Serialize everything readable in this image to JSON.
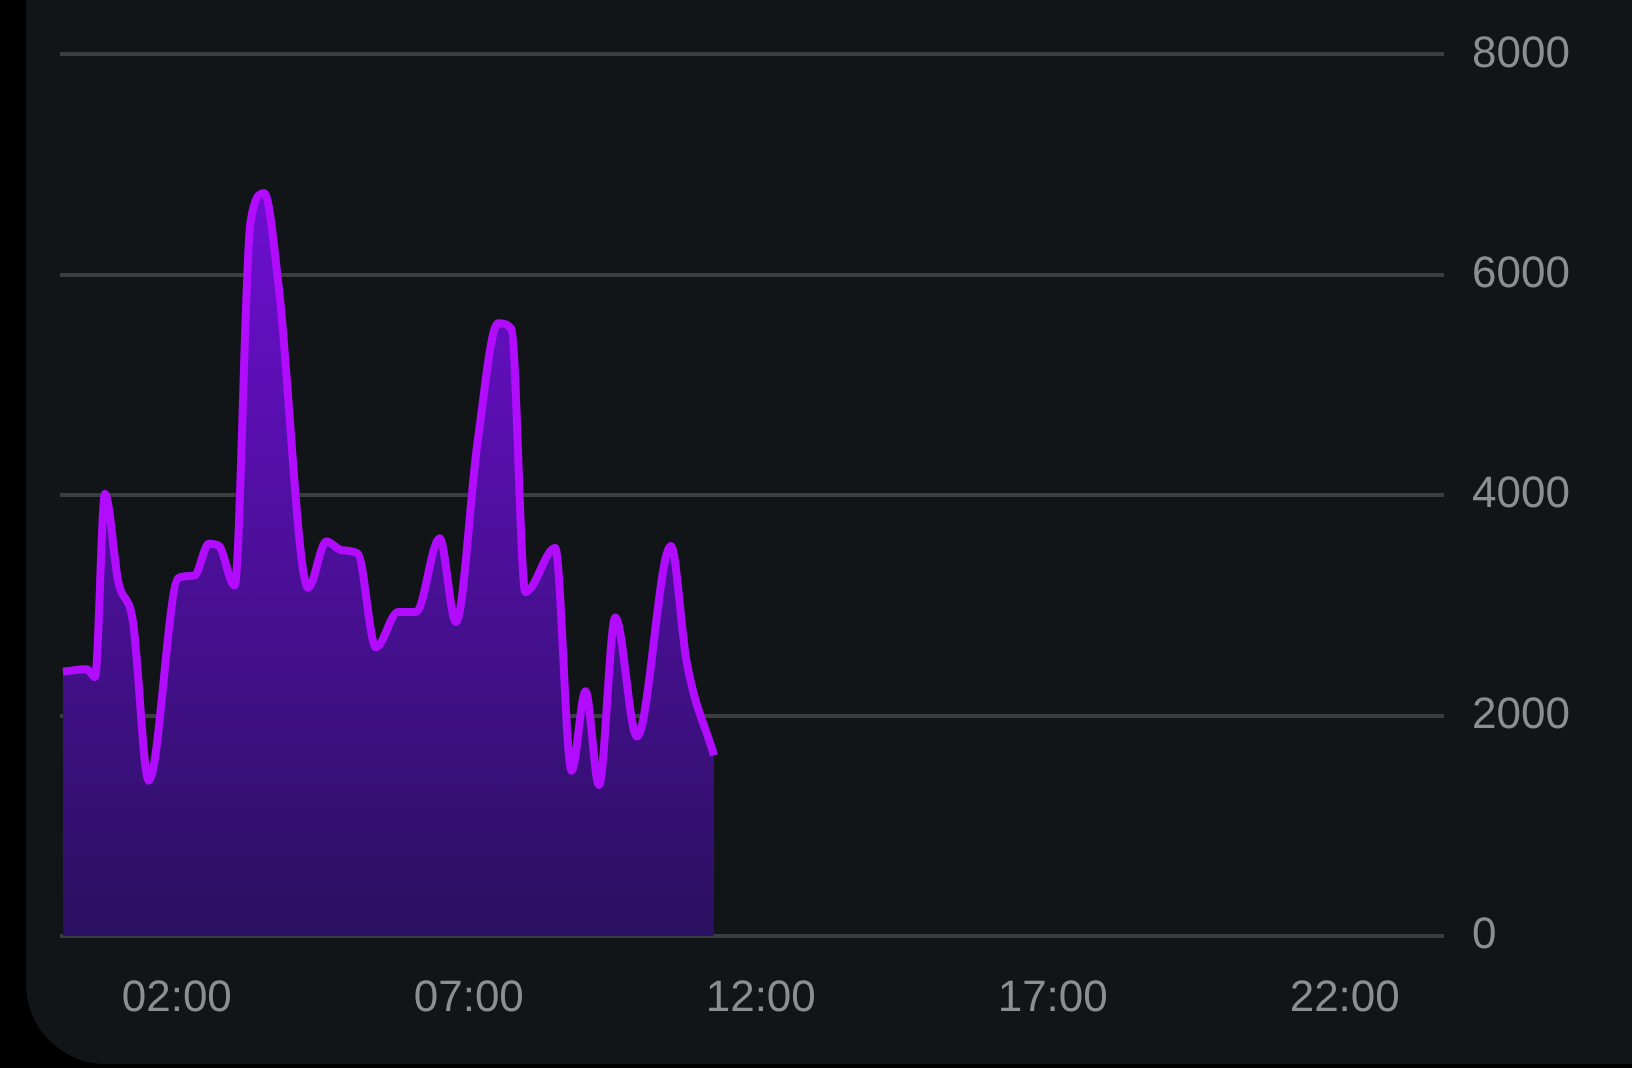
{
  "chart_data": {
    "type": "area",
    "x": [
      0.05,
      0.46,
      0.6,
      0.77,
      1.0,
      1.25,
      1.52,
      2.03,
      2.3,
      2.55,
      2.72,
      2.99,
      3.26,
      3.5,
      3.74,
      4.25,
      4.56,
      4.83,
      5.1,
      5.41,
      5.79,
      6.1,
      6.5,
      6.78,
      7.15,
      7.5,
      7.73,
      7.97,
      8.48,
      8.76,
      9.0,
      9.23,
      9.51,
      9.88,
      10.46,
      10.73,
      11.2
    ],
    "series": [
      {
        "color": "#b20cff",
        "values": [
          2400,
          2420,
          2350,
          4010,
          3210,
          2850,
          1410,
          3250,
          3270,
          3560,
          3540,
          3180,
          6470,
          6740,
          5920,
          3160,
          3580,
          3500,
          3470,
          2620,
          2940,
          2940,
          3610,
          2850,
          4480,
          5560,
          5510,
          3120,
          3520,
          1500,
          2220,
          1370,
          2890,
          1810,
          3540,
          2490,
          1640
        ]
      }
    ],
    "xlim": [
      0,
      23.7
    ],
    "xticks": [
      {
        "value": 2,
        "label": "02:00"
      },
      {
        "value": 7,
        "label": "07:00"
      },
      {
        "value": 12,
        "label": "12:00"
      },
      {
        "value": 17,
        "label": "17:00"
      },
      {
        "value": 22,
        "label": "22:00"
      }
    ],
    "ylim": [
      0,
      8000
    ],
    "yticks": [
      0,
      2000,
      4000,
      6000,
      8000
    ],
    "grid": "y",
    "legend": false,
    "marker": "none",
    "line_style": "solid"
  }
}
